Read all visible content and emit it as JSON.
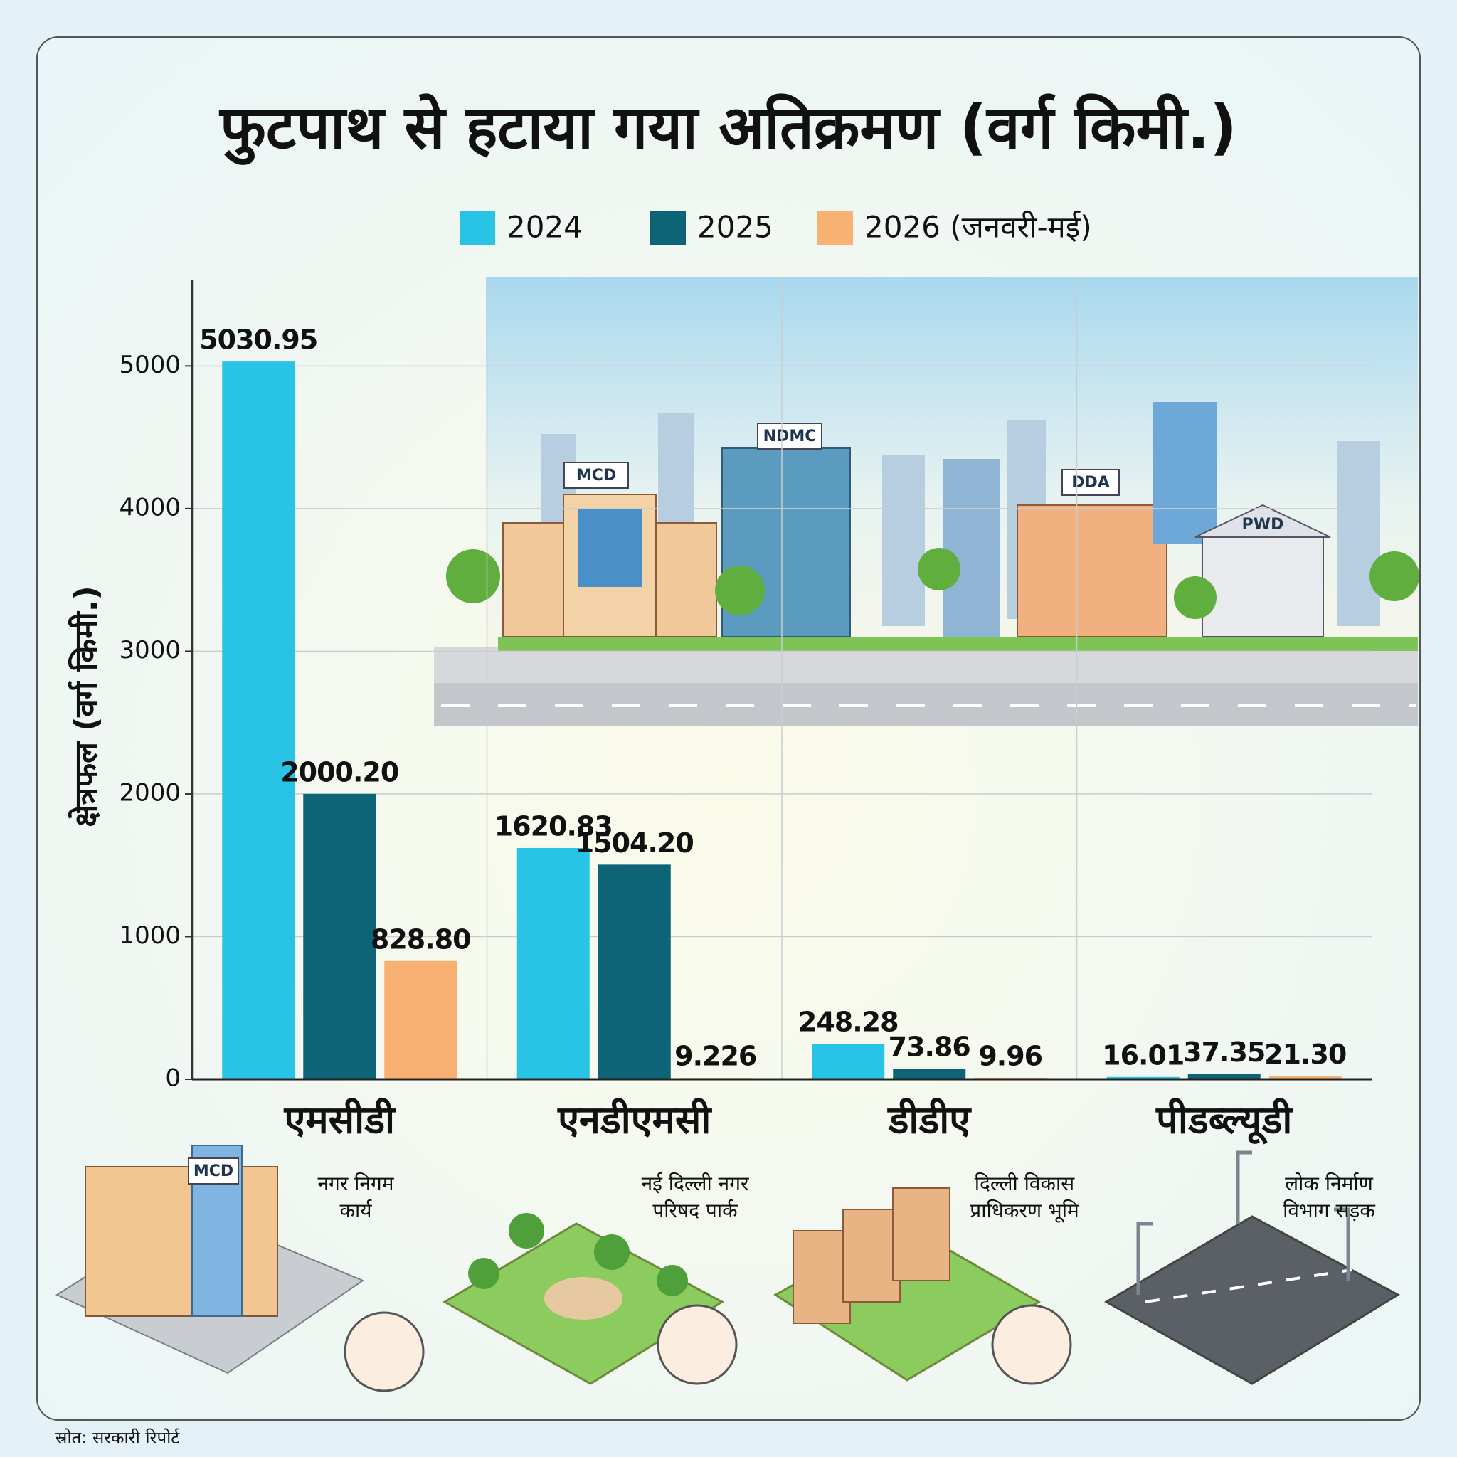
{
  "chart_data": {
    "type": "bar",
    "title": "फुटपाथ से हटाया गया अतिक्रमण (वर्ग किमी.)",
    "y_label": "क्षेत्रफल (वर्ग किमी.)",
    "categories": [
      "एमसीडी",
      "एनडीएमसी",
      "डीडीए",
      "पीडब्ल्यूडी"
    ],
    "series": [
      {
        "name": "2024",
        "color": "#29c3e6",
        "values": [
          5030.95,
          1620.83,
          248.28,
          16.01
        ],
        "value_labels": [
          "5030.95",
          "1620.83",
          "248.28",
          "16.01"
        ]
      },
      {
        "name": "2025",
        "color": "#0e6477",
        "values": [
          2000.2,
          1504.2,
          73.86,
          37.35
        ],
        "value_labels": [
          "2000.20",
          "1504.20",
          "73.86",
          "37.35"
        ]
      },
      {
        "name": "2026 (जनवरी-मई)",
        "color": "#f9b073",
        "values": [
          828.8,
          9.226,
          9.96,
          21.3
        ],
        "value_labels": [
          "828.80",
          "9.226",
          "9.96",
          "21.30"
        ]
      }
    ],
    "ylim": [
      0,
      5600
    ],
    "yticks": [
      0,
      1000,
      2000,
      3000,
      4000,
      5000
    ],
    "grid": true
  },
  "signs": [
    "MCD",
    "NDMC",
    "DDA",
    "PWD"
  ],
  "captions": [
    [
      "नगर निगम",
      "कार्य"
    ],
    [
      "नई दिल्ली नगर",
      "परिषद पार्क"
    ],
    [
      "दिल्ली विकास",
      "प्राधिकरण भूमि"
    ],
    [
      "लोक निर्माण",
      "विभाग सड़क"
    ]
  ],
  "source": "स्रोत: सरकारी रिपोर्ट"
}
